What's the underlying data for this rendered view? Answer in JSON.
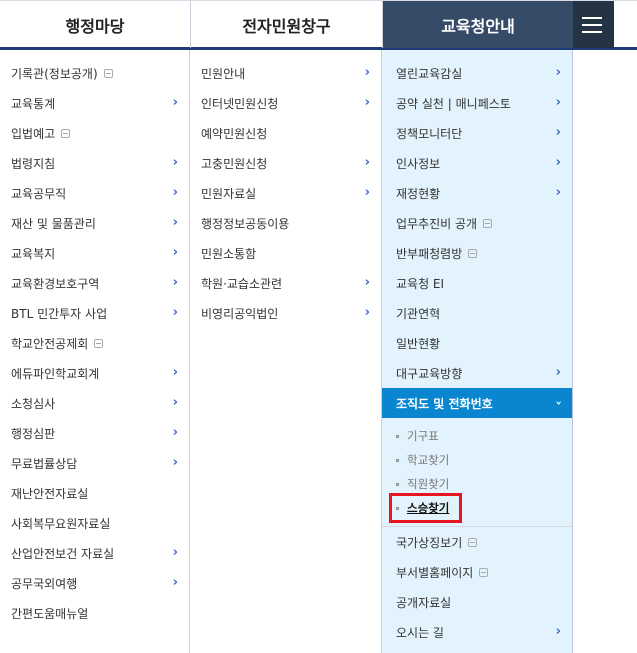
{
  "header": {
    "tabs": [
      "행정마당",
      "전자민원창구",
      "교육청안내"
    ],
    "menu_icon": "hamburger-icon"
  },
  "columns": [
    {
      "items": [
        {
          "label": "기록관(정보공개)",
          "icon": "doc"
        },
        {
          "label": "교육통계",
          "icon": "arrow"
        },
        {
          "label": "입법예고",
          "icon": "doc"
        },
        {
          "label": "법령지침",
          "icon": "arrow"
        },
        {
          "label": "교육공무직",
          "icon": "arrow"
        },
        {
          "label": "재산 및 물품관리",
          "icon": "arrow"
        },
        {
          "label": "교육복지",
          "icon": "arrow"
        },
        {
          "label": "교육환경보호구역",
          "icon": "arrow"
        },
        {
          "label": "BTL 민간투자 사업",
          "icon": "arrow"
        },
        {
          "label": "학교안전공제회",
          "icon": "doc"
        },
        {
          "label": "에듀파인학교회계",
          "icon": "arrow"
        },
        {
          "label": "소청심사",
          "icon": "arrow"
        },
        {
          "label": "행정심판",
          "icon": "arrow"
        },
        {
          "label": "무료법률상담",
          "icon": "arrow"
        },
        {
          "label": "재난안전자료실",
          "icon": ""
        },
        {
          "label": "사회복무요원자료실",
          "icon": ""
        },
        {
          "label": "산업안전보건 자료실",
          "icon": "arrow"
        },
        {
          "label": "공무국외여행",
          "icon": "arrow"
        },
        {
          "label": "간편도움매뉴얼",
          "icon": ""
        }
      ]
    },
    {
      "items": [
        {
          "label": "민원안내",
          "icon": "arrow"
        },
        {
          "label": "인터넷민원신청",
          "icon": "arrow"
        },
        {
          "label": "예약민원신청",
          "icon": ""
        },
        {
          "label": "고충민원신청",
          "icon": "arrow"
        },
        {
          "label": "민원자료실",
          "icon": "arrow"
        },
        {
          "label": "행정정보공동이용",
          "icon": ""
        },
        {
          "label": "민원소통함",
          "icon": ""
        },
        {
          "label": "학원·교습소관련",
          "icon": "arrow"
        },
        {
          "label": "비영리공익법인",
          "icon": "arrow"
        }
      ]
    },
    {
      "items": [
        {
          "label": "열린교육감실",
          "icon": "arrow"
        },
        {
          "label": "공약 실천 | 매니페스토",
          "icon": "arrow"
        },
        {
          "label": "정책모니터단",
          "icon": "arrow"
        },
        {
          "label": "인사정보",
          "icon": "arrow"
        },
        {
          "label": "재정현황",
          "icon": "arrow"
        },
        {
          "label": "업무추진비 공개",
          "icon": "doc"
        },
        {
          "label": "반부패청렴방",
          "icon": "doc"
        },
        {
          "label": "교육청 EI",
          "icon": ""
        },
        {
          "label": "기관연혁",
          "icon": ""
        },
        {
          "label": "일반현황",
          "icon": ""
        },
        {
          "label": "대구교육방향",
          "icon": "arrow"
        },
        {
          "label": "조직도 및 전화번호",
          "icon": "arrow",
          "active": true,
          "sub": [
            {
              "label": "기구표"
            },
            {
              "label": "학교찾기"
            },
            {
              "label": "직원찾기"
            },
            {
              "label": "스승찾기",
              "highlighted": true
            }
          ]
        },
        {
          "label": "국가상징보기",
          "icon": "doc"
        },
        {
          "label": "부서별홈페이지",
          "icon": "doc"
        },
        {
          "label": "공개자료실",
          "icon": ""
        },
        {
          "label": "오시는 길",
          "icon": "arrow"
        }
      ]
    }
  ],
  "colors": {
    "accent": "#0a86d0",
    "header_active": "#364b68",
    "highlight_box": "#e8141f",
    "panel_bg": "#e2f3fd"
  }
}
